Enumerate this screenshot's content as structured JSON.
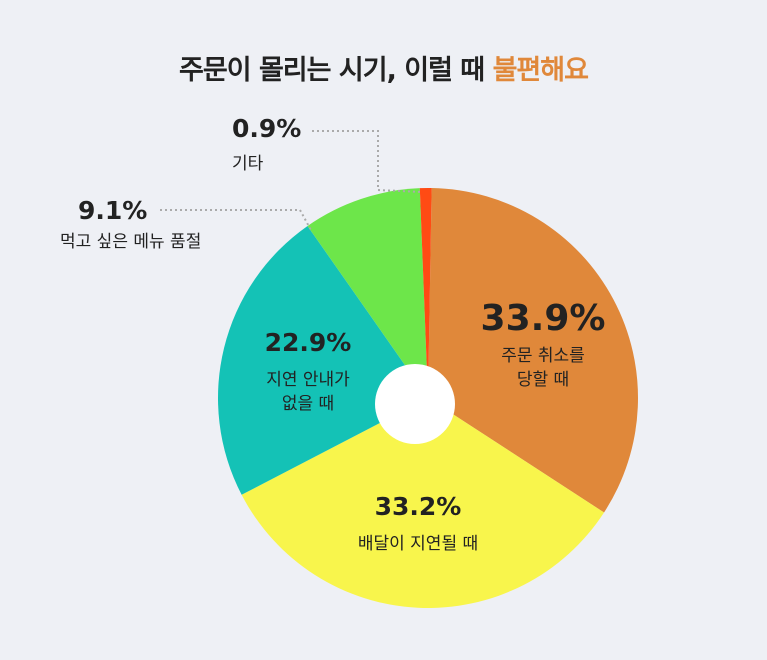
{
  "chart_data": {
    "type": "pie",
    "title": "주문이 몰리는 시기, 이럴 때",
    "title_highlight": "불편해요",
    "categories": [
      "주문 취소를\n당할 때",
      "배달이 지연될 때",
      "지연 안내가\n없을 때",
      "먹고 싶은 메뉴 품절",
      "기타"
    ],
    "values": [
      33.9,
      33.2,
      22.9,
      9.1,
      0.9
    ],
    "value_labels": [
      "33.9%",
      "33.2%",
      "22.9%",
      "9.1%",
      "0.9%"
    ],
    "colors": [
      "#e0883a",
      "#f8f54c",
      "#14c2b6",
      "#6de64a",
      "#ff4b14"
    ]
  }
}
